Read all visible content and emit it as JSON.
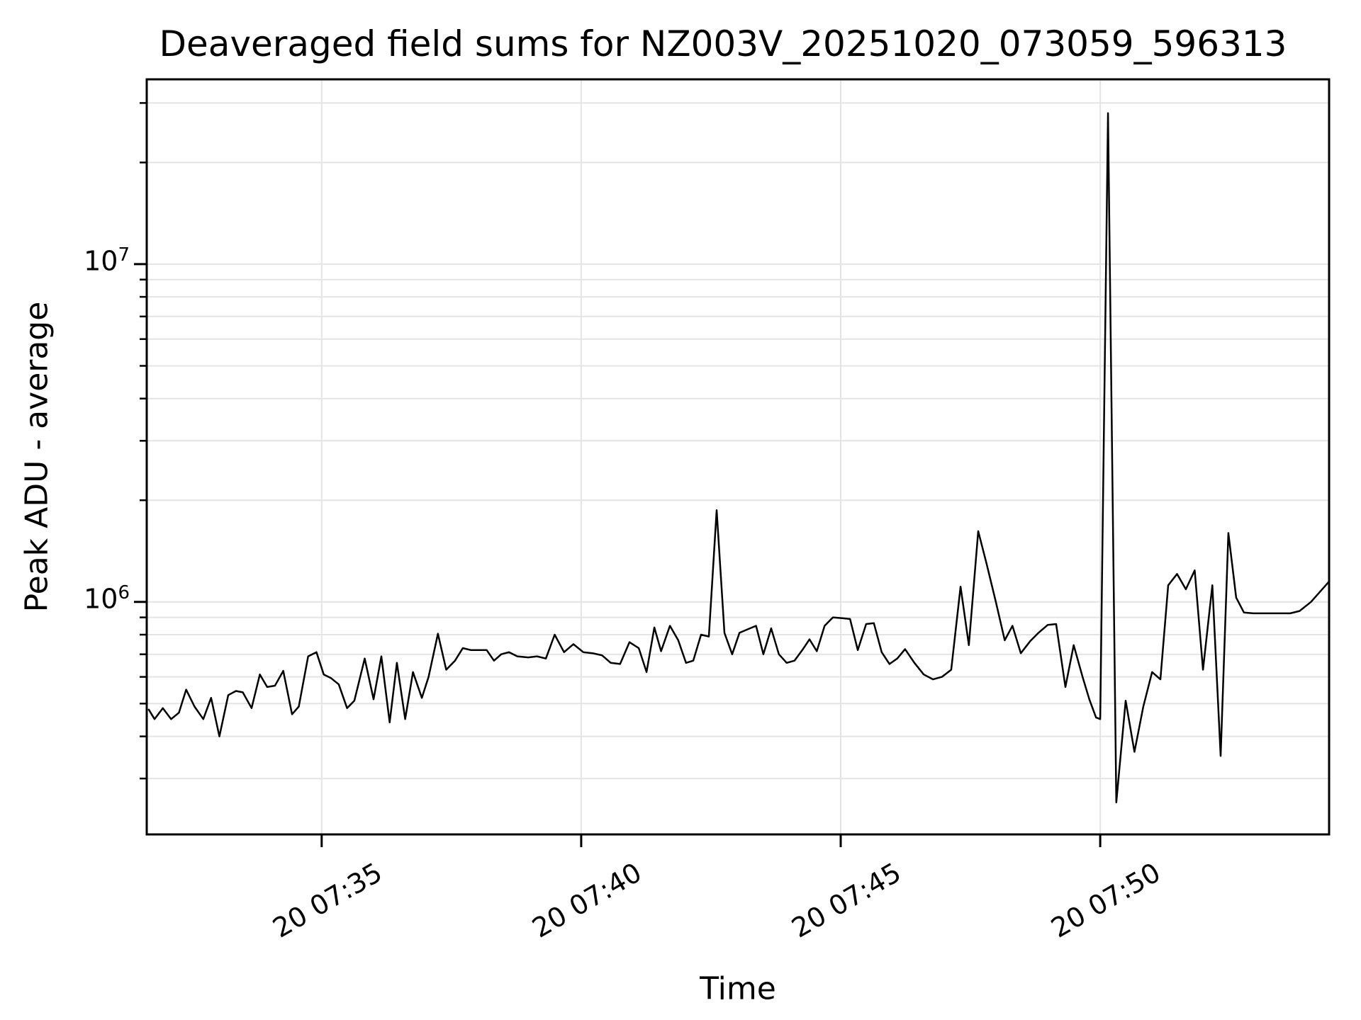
{
  "chart_data": {
    "type": "line",
    "title": "Deaveraged field sums for NZ003V_20251020_073059_596313",
    "xlabel": "Time",
    "ylabel": "Peak ADU - average",
    "background_color": "#ffffff",
    "line_color": "#000000",
    "grid_color": "#e4e4e4",
    "spine_color": "#000000",
    "grid": "both",
    "legend": "none",
    "x_axis": {
      "unit": "minutes_after_07:00_day_20",
      "range": [
        31.63,
        54.41
      ],
      "major_ticks": [
        35,
        40,
        45,
        50
      ],
      "tick_labels": [
        "20 07:35",
        "20 07:40",
        "20 07:45",
        "20 07:50"
      ],
      "tick_label_rotation_deg": 30
    },
    "y_axis": {
      "scale": "log",
      "range": [
        205000,
        35250000
      ],
      "major_ticks": [
        1000000,
        10000000
      ],
      "major_tick_labels": [
        {
          "base": "10",
          "exp": "6"
        },
        {
          "base": "10",
          "exp": "7"
        }
      ],
      "minor_ticks": [
        300000,
        400000,
        500000,
        600000,
        700000,
        800000,
        900000,
        2000000,
        3000000,
        4000000,
        5000000,
        6000000,
        7000000,
        8000000,
        9000000,
        20000000,
        30000000
      ]
    },
    "series": [
      {
        "name": "Peak ADU - average",
        "marker": "none",
        "x": [
          31.67,
          31.78,
          31.94,
          32.1,
          32.25,
          32.39,
          32.55,
          32.72,
          32.87,
          33.03,
          33.2,
          33.35,
          33.48,
          33.65,
          33.81,
          33.95,
          34.1,
          34.26,
          34.43,
          34.56,
          34.74,
          34.9,
          35.04,
          35.18,
          35.33,
          35.49,
          35.63,
          35.83,
          36.0,
          36.15,
          36.31,
          36.45,
          36.61,
          36.76,
          36.93,
          37.06,
          37.24,
          37.4,
          37.57,
          37.72,
          37.88,
          38.05,
          38.18,
          38.32,
          38.46,
          38.61,
          38.77,
          38.98,
          39.15,
          39.32,
          39.49,
          39.67,
          39.85,
          40.04,
          40.22,
          40.4,
          40.57,
          40.75,
          40.93,
          41.11,
          41.26,
          41.41,
          41.54,
          41.71,
          41.87,
          42.02,
          42.16,
          42.31,
          42.46,
          42.61,
          42.76,
          42.91,
          43.05,
          43.21,
          43.37,
          43.51,
          43.66,
          43.81,
          43.96,
          44.11,
          44.26,
          44.4,
          44.54,
          44.69,
          44.85,
          45.03,
          45.18,
          45.33,
          45.49,
          45.64,
          45.79,
          45.94,
          46.09,
          46.24,
          46.42,
          46.6,
          46.78,
          46.95,
          47.13,
          47.31,
          47.47,
          47.65,
          47.81,
          47.99,
          48.16,
          48.31,
          48.47,
          48.65,
          48.81,
          48.99,
          49.15,
          49.33,
          49.49,
          49.66,
          49.79,
          49.92,
          50.0,
          50.15,
          50.31,
          50.49,
          50.66,
          50.83,
          51.0,
          51.16,
          51.31,
          51.48,
          51.65,
          51.82,
          51.98,
          52.16,
          52.32,
          52.47,
          52.62,
          52.77,
          52.95,
          53.13,
          53.31,
          53.48,
          53.66,
          53.84,
          54.06,
          54.41
        ],
        "y": [
          480000,
          450000,
          485000,
          450000,
          470000,
          550000,
          490000,
          450000,
          520000,
          400000,
          530000,
          545000,
          540000,
          485000,
          610000,
          560000,
          565000,
          625000,
          465000,
          490000,
          690000,
          710000,
          610000,
          595000,
          570000,
          485000,
          510000,
          680000,
          515000,
          690000,
          440000,
          660000,
          450000,
          620000,
          520000,
          600000,
          805000,
          630000,
          670000,
          730000,
          720000,
          720000,
          720000,
          670000,
          700000,
          710000,
          690000,
          685000,
          690000,
          680000,
          800000,
          710000,
          750000,
          710000,
          705000,
          695000,
          660000,
          655000,
          760000,
          730000,
          620000,
          840000,
          715000,
          850000,
          770000,
          660000,
          670000,
          800000,
          790000,
          1870000,
          810000,
          700000,
          810000,
          830000,
          850000,
          700000,
          835000,
          700000,
          660000,
          670000,
          720000,
          775000,
          715000,
          850000,
          900000,
          895000,
          890000,
          720000,
          860000,
          865000,
          710000,
          655000,
          680000,
          725000,
          660000,
          610000,
          590000,
          600000,
          630000,
          1110000,
          745000,
          1620000,
          1300000,
          1000000,
          770000,
          850000,
          705000,
          765000,
          810000,
          855000,
          860000,
          560000,
          745000,
          600000,
          515000,
          455000,
          450000,
          28000000,
          255000,
          510000,
          360000,
          490000,
          620000,
          590000,
          1120000,
          1210000,
          1090000,
          1240000,
          630000,
          1120000,
          350000,
          1600000,
          1030000,
          930000,
          925000,
          925000,
          925000,
          925000,
          925000,
          940000,
          1000000,
          1150000
        ]
      }
    ]
  }
}
